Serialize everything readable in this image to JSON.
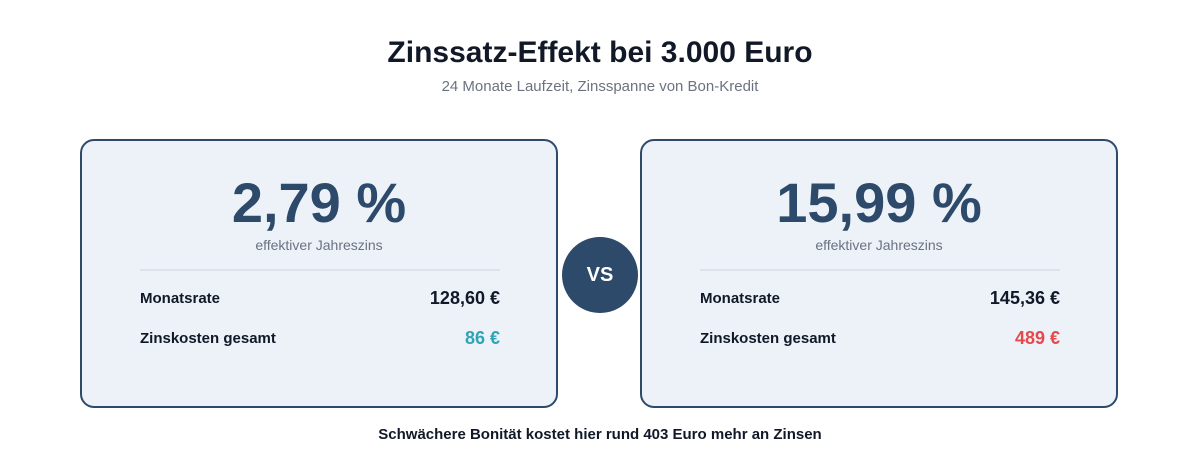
{
  "header": {
    "title": "Zinssatz-Effekt bei 3.000 Euro",
    "subtitle": "24 Monate Laufzeit, Zinsspanne von Bon-Kredit"
  },
  "cards": [
    {
      "rate": "2,79 %",
      "rate_label": "effektiver Jahreszins",
      "rows": [
        {
          "label": "Monatsrate",
          "value": "128,60 €"
        },
        {
          "label": "Zinskosten gesamt",
          "value": "86 €",
          "value_color": "#2fa4b5"
        }
      ]
    },
    {
      "rate": "15,99 %",
      "rate_label": "effektiver Jahreszins",
      "rows": [
        {
          "label": "Monatsrate",
          "value": "145,36 €"
        },
        {
          "label": "Zinskosten gesamt",
          "value": "489 €",
          "value_color": "#e5484d"
        }
      ]
    }
  ],
  "vs_label": "VS",
  "footer": {
    "note": "Schwächere Bonität kostet hier rund 403 Euro mehr an Zinsen"
  },
  "colors": {
    "accent": "#2d4a6b",
    "card_background": "#edf2f9",
    "positive": "#2fa4b5",
    "negative": "#e5484d"
  }
}
